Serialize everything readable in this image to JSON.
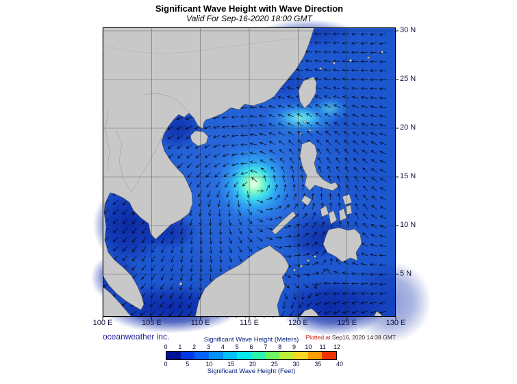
{
  "header": {
    "title": "Significant Wave Height with Wave Direction",
    "subtitle": "Valid For Sep-16-2020 18:00 GMT"
  },
  "map": {
    "lon_labels": [
      "100 E",
      "105 E",
      "110 E",
      "115 E",
      "120 E",
      "125 E",
      "130 E"
    ],
    "lat_labels": [
      "30 N",
      "25 N",
      "20 N",
      "15 N",
      "10 N",
      "5 N"
    ],
    "land_color": "#c8c8c8",
    "ocean_base_color": "#1d57cf",
    "arrow_color": "#000000",
    "arrows": {
      "spacing": 13.5,
      "length": 9.5
    },
    "wave_maxima": [
      {
        "label": "typhoon-wave-maximum",
        "lon_e": 115.5,
        "lat_n": 14.2,
        "approx_wave_height_m": 6
      },
      {
        "label": "secondary-maximum-luzon-strait",
        "lon_e": 119.8,
        "lat_n": 21.0,
        "approx_wave_height_m": 4
      }
    ]
  },
  "credits": {
    "publisher": "oceanweather inc.",
    "plotted_prefix": "Plotted at",
    "plotted_datetime": "Sep16, 2020 14:38 GMT"
  },
  "colorbar": {
    "title_meters": "Significant Wave Height (Meters)",
    "title_feet": "Significant Wave Height (Feet)",
    "meter_ticks": [
      "0",
      "1",
      "2",
      "3",
      "4",
      "5",
      "6",
      "7",
      "8",
      "9",
      "10",
      "11",
      "12"
    ],
    "feet_ticks": [
      "0",
      "5",
      "10",
      "15",
      "20",
      "25",
      "30",
      "35",
      "40"
    ],
    "segment_colors": [
      "#001099",
      "#0038e8",
      "#0063ff",
      "#0091ff",
      "#00c0ff",
      "#00e9ec",
      "#2cf2ae",
      "#6ef45f",
      "#bdee37",
      "#f4d920",
      "#ff9d00",
      "#f33000"
    ]
  },
  "chart_data": {
    "type": "heatmap",
    "title": "Significant Wave Height with Wave Direction",
    "valid_time": "Sep-16-2020 18:00 GMT",
    "x_axis": {
      "unit": "degrees E",
      "ticks": [
        100,
        105,
        110,
        115,
        120,
        125,
        130
      ]
    },
    "y_axis": {
      "unit": "degrees N",
      "ticks": [
        30,
        25,
        20,
        15,
        10,
        5
      ]
    },
    "colorbar_range_meters": [
      0,
      12
    ],
    "colorbar_range_feet": [
      0,
      40
    ],
    "observed_maxima": [
      {
        "lon_e": 115.5,
        "lat_n": 14.2,
        "approx_wave_height_m": 6
      },
      {
        "lon_e": 119.8,
        "lat_n": 21.0,
        "approx_wave_height_m": 4
      }
    ]
  }
}
